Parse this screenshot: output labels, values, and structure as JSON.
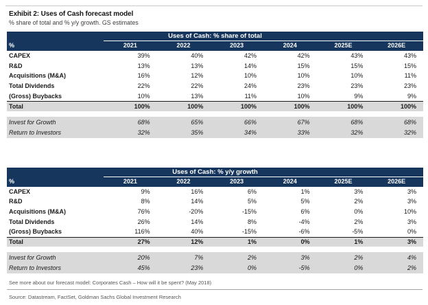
{
  "header": {
    "title": "Exhibit 2: Uses of Cash forecast model",
    "subtitle": "% share of total and % y/y growth. GS estimates"
  },
  "colors": {
    "header_navy": "#17365d",
    "shaded_row_gray": "#d9d9d9"
  },
  "tables": [
    {
      "title": "Uses of Cash: % share of total",
      "col_header": "%",
      "years": [
        "2021",
        "2022",
        "2023",
        "2024",
        "2025E",
        "2026E"
      ],
      "rows": [
        {
          "label": "CAPEX",
          "values": [
            "39%",
            "40%",
            "42%",
            "42%",
            "43%",
            "43%"
          ]
        },
        {
          "label": "R&D",
          "values": [
            "13%",
            "13%",
            "14%",
            "15%",
            "15%",
            "15%"
          ]
        },
        {
          "label": "Acquisitions (M&A)",
          "values": [
            "16%",
            "12%",
            "10%",
            "10%",
            "10%",
            "11%"
          ]
        },
        {
          "label": "Total Dividends",
          "values": [
            "22%",
            "22%",
            "24%",
            "23%",
            "23%",
            "23%"
          ]
        },
        {
          "label": "(Gross) Buybacks",
          "values": [
            "10%",
            "13%",
            "11%",
            "10%",
            "9%",
            "9%"
          ]
        },
        {
          "label": "Total",
          "values": [
            "100%",
            "100%",
            "100%",
            "100%",
            "100%",
            "100%"
          ],
          "style": "total"
        }
      ],
      "subrows": [
        {
          "label": "Invest for Growth",
          "values": [
            "68%",
            "65%",
            "66%",
            "67%",
            "68%",
            "68%"
          ]
        },
        {
          "label": "Return to Investors",
          "values": [
            "32%",
            "35%",
            "34%",
            "33%",
            "32%",
            "32%"
          ]
        }
      ]
    },
    {
      "title": "Uses of Cash: % y/y growth",
      "col_header": "%",
      "years": [
        "2021",
        "2022",
        "2023",
        "2024",
        "2025E",
        "2026E"
      ],
      "rows": [
        {
          "label": "CAPEX",
          "values": [
            "9%",
            "16%",
            "6%",
            "1%",
            "3%",
            "3%"
          ]
        },
        {
          "label": "R&D",
          "values": [
            "8%",
            "14%",
            "5%",
            "5%",
            "2%",
            "3%"
          ]
        },
        {
          "label": "Acquisitions (M&A)",
          "values": [
            "76%",
            "-20%",
            "-15%",
            "6%",
            "0%",
            "10%"
          ]
        },
        {
          "label": "Total Dividends",
          "values": [
            "26%",
            "14%",
            "8%",
            "-4%",
            "2%",
            "3%"
          ]
        },
        {
          "label": "(Gross) Buybacks",
          "values": [
            "116%",
            "40%",
            "-15%",
            "-6%",
            "-5%",
            "0%"
          ]
        },
        {
          "label": "Total",
          "values": [
            "27%",
            "12%",
            "1%",
            "0%",
            "1%",
            "3%"
          ],
          "style": "total"
        }
      ],
      "subrows": [
        {
          "label": "Invest for Growth",
          "values": [
            "20%",
            "7%",
            "2%",
            "3%",
            "2%",
            "4%"
          ]
        },
        {
          "label": "Return to Investors",
          "values": [
            "45%",
            "23%",
            "0%",
            "-5%",
            "0%",
            "2%"
          ]
        }
      ]
    }
  ],
  "footer": {
    "footnote": "See more about our forecast model: Corporates Cash – How will it be spent? (May 2018)",
    "source": "Source: Datastream, FactSet, Goldman Sachs Global Investment Research"
  }
}
